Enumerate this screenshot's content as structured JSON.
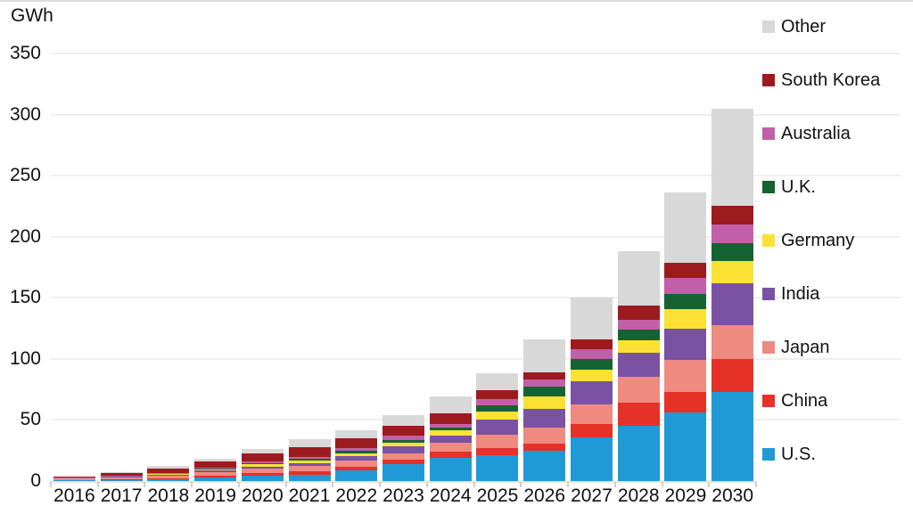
{
  "chart_data": {
    "type": "bar",
    "stacked": true,
    "title": "",
    "ylabel": "GWh",
    "xlabel": "",
    "ylim": [
      0,
      350
    ],
    "ytick_step": 50,
    "grid": true,
    "legend_position": "right",
    "categories": [
      "2016",
      "2017",
      "2018",
      "2019",
      "2020",
      "2021",
      "2022",
      "2023",
      "2024",
      "2025",
      "2026",
      "2027",
      "2028",
      "2029",
      "2030"
    ],
    "series_order_note": "bottom-to-top stacking order",
    "series": [
      {
        "name": "U.S.",
        "color": "#1f9ad7",
        "values": [
          0.6,
          1.0,
          1.5,
          3.0,
          4.5,
          5.5,
          9.0,
          14.0,
          19.0,
          21.0,
          25.0,
          36.0,
          45.0,
          56.0,
          73.0
        ]
      },
      {
        "name": "China",
        "color": "#e63128",
        "values": [
          0.3,
          0.5,
          1.0,
          1.5,
          2.0,
          2.5,
          2.5,
          3.5,
          5.0,
          6.0,
          6.0,
          11.0,
          19.0,
          17.0,
          27.0
        ]
      },
      {
        "name": "Japan",
        "color": "#ee8a80",
        "values": [
          1.0,
          1.5,
          2.0,
          3.0,
          4.0,
          4.5,
          5.0,
          5.5,
          7.0,
          11.0,
          13.0,
          16.0,
          21.0,
          26.0,
          28.0
        ]
      },
      {
        "name": "India",
        "color": "#7a52a3",
        "values": [
          0.2,
          0.3,
          0.5,
          1.0,
          1.5,
          2.5,
          4.0,
          5.5,
          6.0,
          12.0,
          15.0,
          19.0,
          20.0,
          26.0,
          34.0
        ]
      },
      {
        "name": "Germany",
        "color": "#fbe134",
        "values": [
          0.3,
          0.4,
          0.5,
          1.0,
          1.5,
          2.0,
          2.5,
          3.0,
          4.5,
          7.0,
          10.0,
          9.0,
          10.0,
          16.0,
          18.0
        ]
      },
      {
        "name": "U.K.",
        "color": "#156331",
        "values": [
          0.1,
          0.2,
          0.3,
          0.5,
          1.0,
          1.5,
          2.0,
          2.5,
          2.5,
          5.0,
          8.0,
          9.0,
          9.0,
          12.0,
          15.0
        ]
      },
      {
        "name": "Australia",
        "color": "#c25fa8",
        "values": [
          0.2,
          0.4,
          0.7,
          1.0,
          1.5,
          1.5,
          2.0,
          3.0,
          3.0,
          5.0,
          6.0,
          8.0,
          8.0,
          13.0,
          15.0
        ]
      },
      {
        "name": "South Korea",
        "color": "#9c1b1e",
        "values": [
          1.0,
          2.2,
          4.0,
          5.0,
          6.5,
          8.0,
          8.0,
          8.5,
          8.5,
          7.0,
          6.0,
          8.0,
          12.0,
          13.0,
          15.0
        ]
      },
      {
        "name": "Other",
        "color": "#d8d8d8",
        "values": [
          0.3,
          0.5,
          1.5,
          2.0,
          3.5,
          6.0,
          7.0,
          8.5,
          13.5,
          14.0,
          27.0,
          34.0,
          44.0,
          57.0,
          80.0
        ]
      }
    ],
    "totals": [
      4,
      7,
      12,
      18,
      26,
      34,
      42,
      54,
      69,
      88,
      116,
      150,
      188,
      236,
      305
    ],
    "ytick_labels": [
      "0",
      "50",
      "100",
      "150",
      "200",
      "250",
      "300",
      "350"
    ],
    "legend_entries_top_to_bottom": [
      "Other",
      "South Korea",
      "Australia",
      "U.K.",
      "Germany",
      "India",
      "Japan",
      "China",
      "U.S."
    ]
  }
}
